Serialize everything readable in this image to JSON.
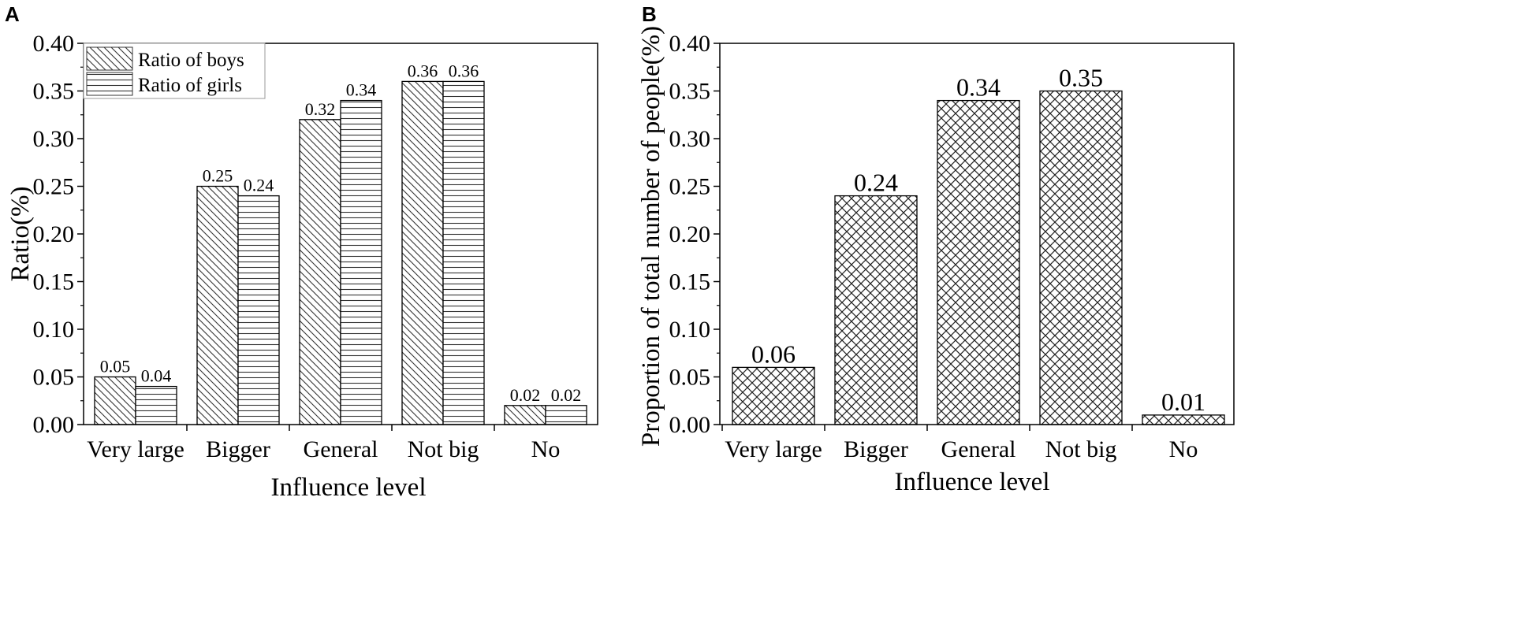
{
  "chart_data": [
    {
      "panel": "A",
      "type": "bar",
      "categories": [
        "Very large",
        "Bigger",
        "General",
        "Not big",
        "No"
      ],
      "series": [
        {
          "name": "Ratio of boys",
          "values": [
            0.05,
            0.25,
            0.32,
            0.36,
            0.02
          ],
          "labels": [
            "0.05",
            "0.25",
            "0.32",
            "0.36",
            "0.02"
          ],
          "pattern": "diagonal"
        },
        {
          "name": "Ratio of girls",
          "values": [
            0.04,
            0.24,
            0.34,
            0.36,
            0.02
          ],
          "labels": [
            "0.04",
            "0.24",
            "0.34",
            "0.36",
            "0.02"
          ],
          "pattern": "horizontal"
        }
      ],
      "xlabel": "Influence level",
      "ylabel": "Ratio(%)",
      "ylim": [
        0,
        0.4
      ],
      "yticks": [
        "0.00",
        "0.05",
        "0.10",
        "0.15",
        "0.20",
        "0.25",
        "0.30",
        "0.35",
        "0.40"
      ],
      "grid": false,
      "legend": "top-left"
    },
    {
      "panel": "B",
      "type": "bar",
      "categories": [
        "Very large",
        "Bigger",
        "General",
        "Not big",
        "No"
      ],
      "series": [
        {
          "values": [
            0.06,
            0.24,
            0.34,
            0.35,
            0.01
          ],
          "labels": [
            "0.06",
            "0.24",
            "0.34",
            "0.35",
            "0.01"
          ],
          "pattern": "crosshatch"
        }
      ],
      "xlabel": "Influence level",
      "ylabel": "Proportion of total number of people(%)",
      "ylim": [
        0,
        0.4
      ],
      "yticks": [
        "0.00",
        "0.05",
        "0.10",
        "0.15",
        "0.20",
        "0.25",
        "0.30",
        "0.35",
        "0.40"
      ],
      "grid": false,
      "legend": "none"
    }
  ]
}
